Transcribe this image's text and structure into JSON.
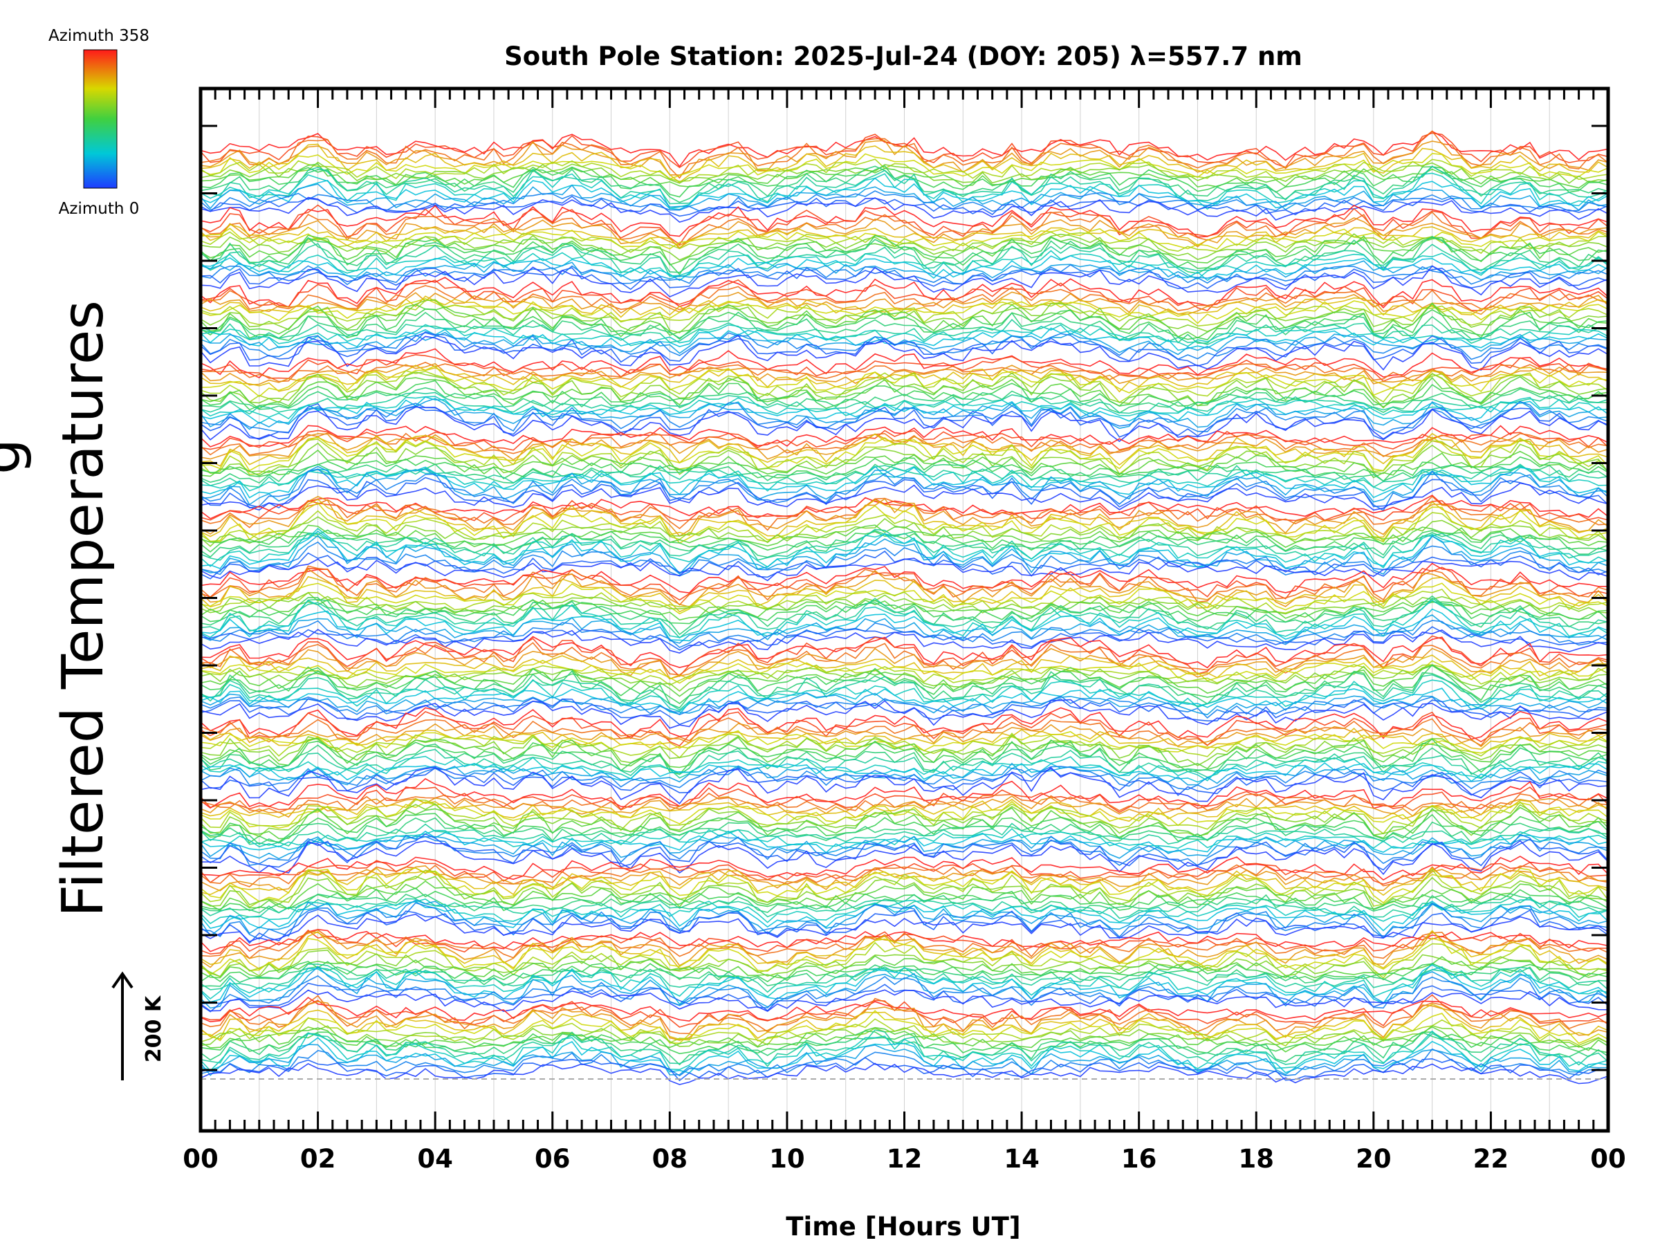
{
  "chart_data": {
    "type": "line",
    "title": "South Pole Station: 2025-Jul-24 (DOY: 205) λ=557.7 nm",
    "xlabel": "Time [Hours UT]",
    "ylabel": "Filtered Temperatures",
    "ylabel_cut": "g",
    "xlim": [
      0,
      24
    ],
    "x_ticks": [
      "00",
      "02",
      "04",
      "06",
      "08",
      "10",
      "12",
      "14",
      "16",
      "18",
      "20",
      "22",
      "00"
    ],
    "x_tick_values": [
      0,
      2,
      4,
      6,
      8,
      10,
      12,
      14,
      16,
      18,
      20,
      22,
      24
    ],
    "scale_bar": {
      "label": "200 K",
      "value_K": 200
    },
    "color_legend": {
      "top_label": "Azimuth  358",
      "bottom_label": "Azimuth  0",
      "min": 0,
      "max": 358
    },
    "series_description": "Stacked azimuth-binned temperature traces, color-coded by azimuth (blue=0, red=358)",
    "num_bands": 13,
    "traces_per_band": 18,
    "colors": {
      "axis": "#000000",
      "gridline": "#d0d0d0",
      "baseline": "#aaaaaa",
      "background": "#ffffff"
    }
  }
}
